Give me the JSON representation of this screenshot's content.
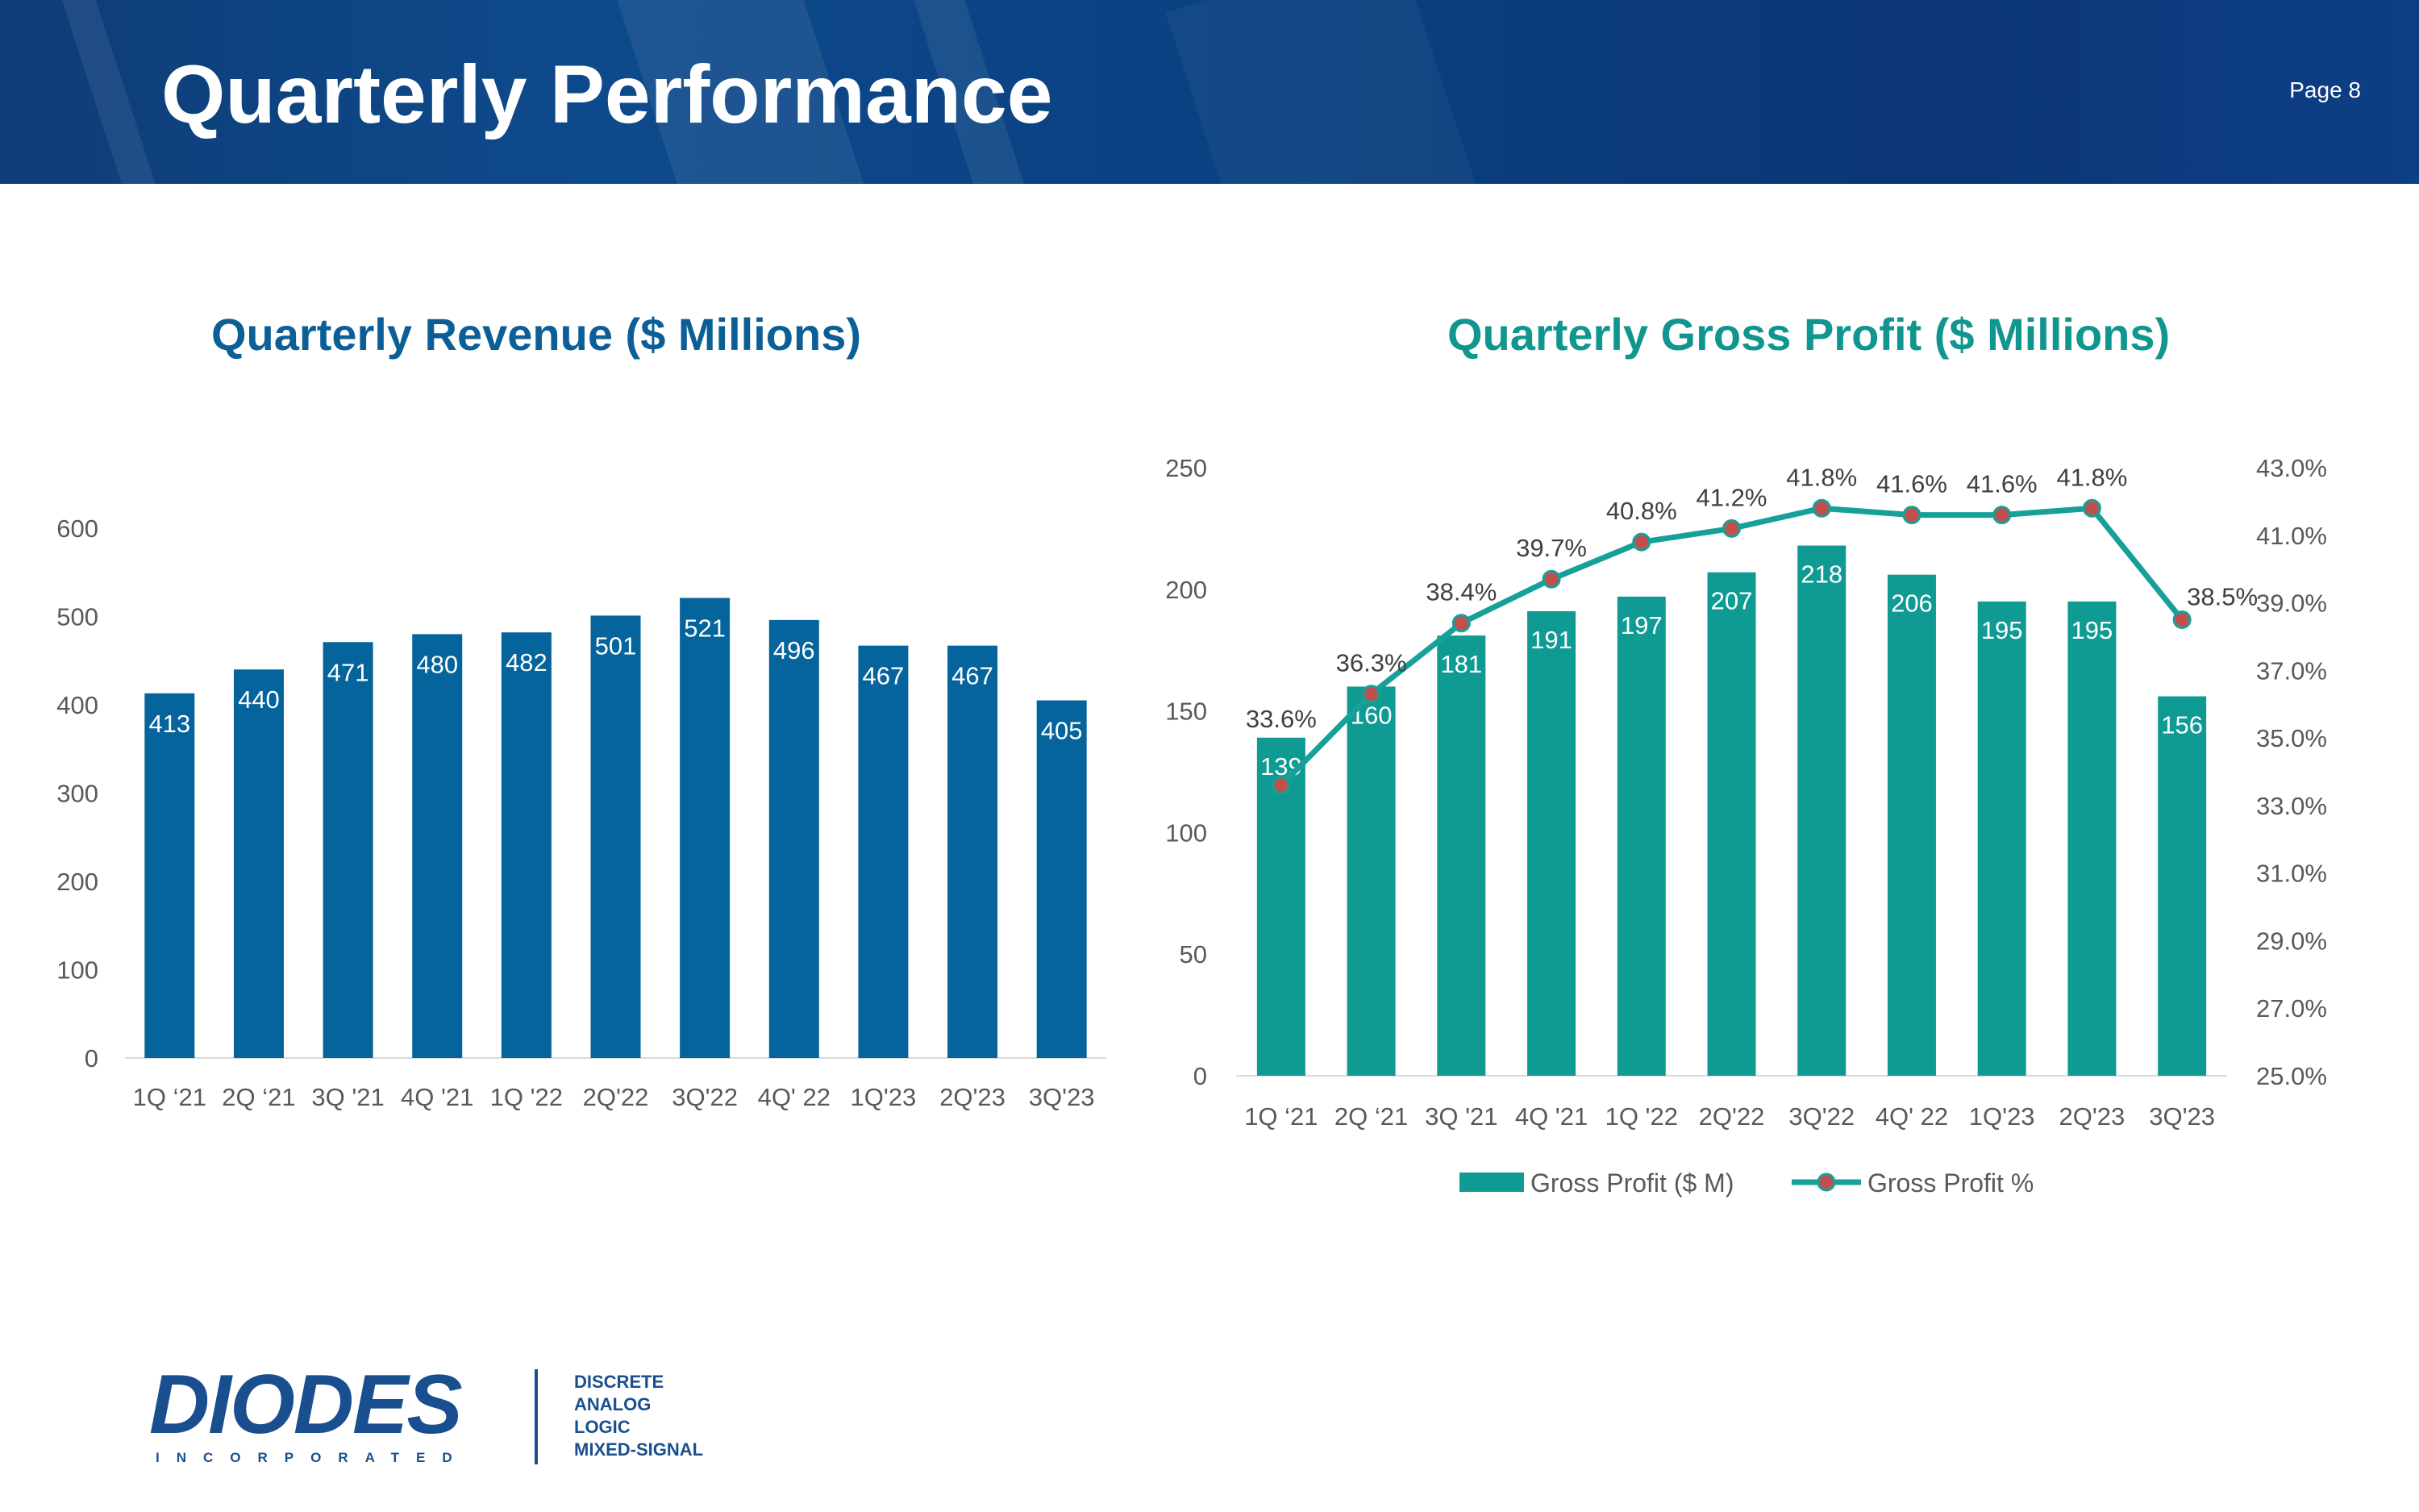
{
  "header": {
    "title": "Quarterly Performance",
    "page": "Page 8"
  },
  "colors": {
    "banner": "#0d4a8c",
    "revenue_bar": "#04649b",
    "gp_bar": "#0f9b93",
    "gp_line": "#16a09a",
    "gp_marker": "#c0504d"
  },
  "chart_data": [
    {
      "type": "bar",
      "title": "Quarterly Revenue ($ Millions)",
      "categories": [
        "1Q ‘21",
        "2Q ‘21",
        "3Q '21",
        "4Q '21",
        "1Q '22",
        "2Q'22",
        "3Q'22",
        "4Q' 22",
        "1Q'23",
        "2Q'23",
        "3Q'23"
      ],
      "values": [
        413,
        440,
        471,
        480,
        482,
        501,
        521,
        496,
        467,
        467,
        405
      ],
      "yticks": [
        "0",
        "100",
        "200",
        "300",
        "400",
        "500",
        "600"
      ],
      "ylim": [
        0,
        600
      ],
      "xlabel": "",
      "ylabel": ""
    },
    {
      "type": "bar+line",
      "title": "Quarterly Gross Profit ($ Millions)",
      "categories": [
        "1Q ‘21",
        "2Q ‘21",
        "3Q '21",
        "4Q '21",
        "1Q '22",
        "2Q'22",
        "3Q'22",
        "4Q' 22",
        "1Q'23",
        "2Q'23",
        "3Q'23"
      ],
      "series": [
        {
          "name": "Gross Profit ($ M)",
          "axis": "left",
          "values": [
            139,
            160,
            181,
            191,
            197,
            207,
            218,
            206,
            195,
            195,
            156
          ]
        },
        {
          "name": "Gross Profit %",
          "axis": "right",
          "values": [
            33.6,
            36.3,
            38.4,
            39.7,
            40.8,
            41.2,
            41.8,
            41.6,
            41.6,
            41.8,
            38.5
          ],
          "labels": [
            "33.6%",
            "36.3%",
            "38.4%",
            "39.7%",
            "40.8%",
            "41.2%",
            "41.8%",
            "41.6%",
            "41.6%",
            "41.8%",
            "38.5%"
          ]
        }
      ],
      "yticks_left": [
        "0",
        "50",
        "100",
        "150",
        "200",
        "250"
      ],
      "ylim_left": [
        0,
        250
      ],
      "yticks_right": [
        "25.0%",
        "27.0%",
        "29.0%",
        "31.0%",
        "33.0%",
        "35.0%",
        "37.0%",
        "39.0%",
        "41.0%",
        "43.0%"
      ],
      "ylim_right": [
        25,
        43
      ],
      "legend": [
        "Gross Profit ($ M)",
        "Gross Profit %"
      ]
    }
  ],
  "logo": {
    "wordmark": "DIODES",
    "subtitle": "INCORPORATED",
    "tagline": [
      "DISCRETE",
      "ANALOG",
      "LOGIC",
      "MIXED-SIGNAL"
    ]
  }
}
